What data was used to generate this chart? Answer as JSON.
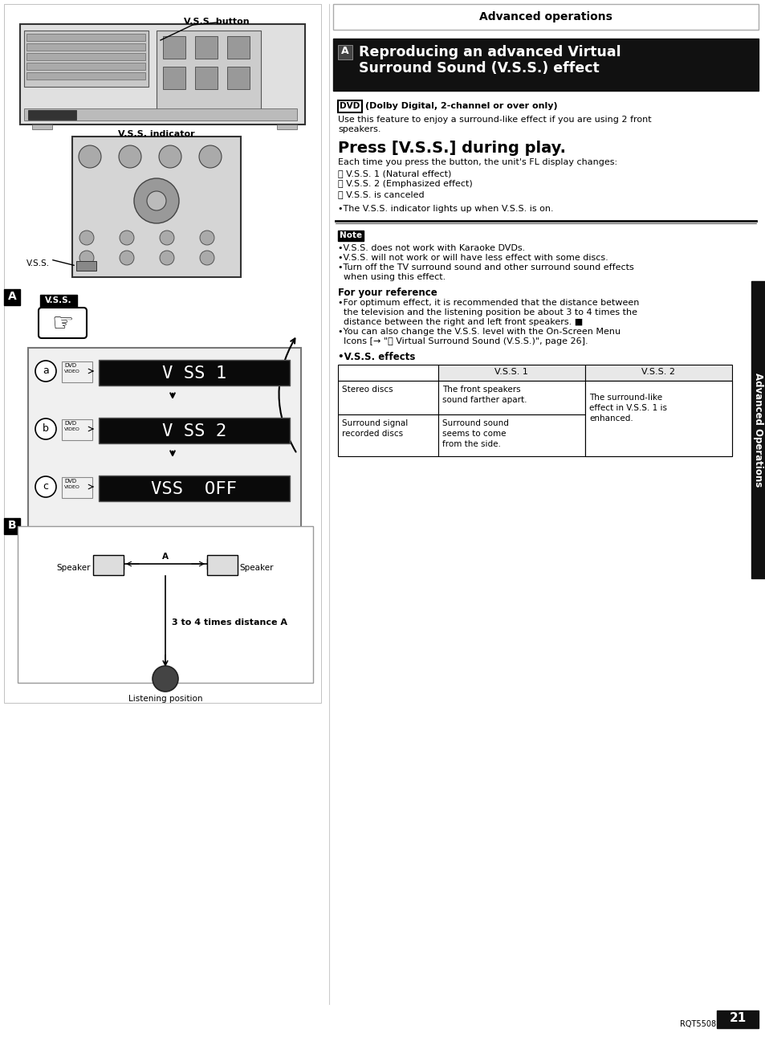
{
  "page_bg": "#ffffff",
  "header_text": "Advanced operations",
  "section_title_line1": "Reproducing an advanced Virtual",
  "section_title_line2": "Surround Sound (V.S.S.) effect",
  "section_label": "A",
  "dvd_label": "DVD",
  "dvd_subtitle": "(Dolby Digital, 2-channel or over only)",
  "press_title": "Press [V.S.S.] during play.",
  "press_desc": "Each time you press the button, the unit's FL display changes:",
  "vss_items_labels": [
    "æ",
    "ç",
    "è"
  ],
  "vss_items_text": [
    "V.S.S. 1 (Natural effect)",
    "V.S.S. 2 (Emphasized effect)",
    "V.S.S. is canceled"
  ],
  "vss_indicator_note": "•The V.S.S. indicator lights up when V.S.S. is on.",
  "note_label": "Note",
  "note_items": [
    "•V.S.S. does not work with Karaoke DVDs.",
    "•V.S.S. will not work or will have less effect with some discs.",
    "•Turn off the TV surround sound and other surround sound effects",
    "  when using this effect."
  ],
  "ref_title": "For your reference",
  "ref_items": [
    "•For optimum effect, it is recommended that the distance between",
    "  the television and the listening position be about 3 to 4 times the",
    "  distance between the right and left front speakers. ■",
    "•You can also change the V.S.S. level with the On-Screen Menu",
    "  Icons [→ \"ⓘ Virtual Surround Sound (V.S.S.)\", page 26]."
  ],
  "effects_title": "•V.S.S. effects",
  "table_headers": [
    "",
    "V.S.S. 1",
    "V.S.S. 2"
  ],
  "table_row1_col0": "Stereo discs",
  "table_row1_col1": "The front speakers\nsound farther apart.",
  "table_row2_col0": "Surround signal\nrecorded discs",
  "table_row2_col1": "Surround sound\nseems to come\nfrom the side.",
  "table_row2_col2": "The surround-like\neffect in V.S.S. 1 is\nenhanced.",
  "sidebar_text": "Advanced Operations",
  "page_num": "21",
  "page_code": "RQT5508",
  "display_a_label": "a",
  "display_b_label": "b",
  "display_c_label": "c",
  "display_a_text": "V SS 1",
  "display_b_text": "V SS 2",
  "display_c_text": "VSS  OFF",
  "vss_button_label": "V.S.S. button",
  "vss_indicator_label": "V.S.S. indicator",
  "speaker_left": "Speaker",
  "speaker_right": "Speaker",
  "distance_label": "3 to 4 times distance A",
  "listening_label": "Listening position",
  "label_A": "A",
  "label_B": "B"
}
